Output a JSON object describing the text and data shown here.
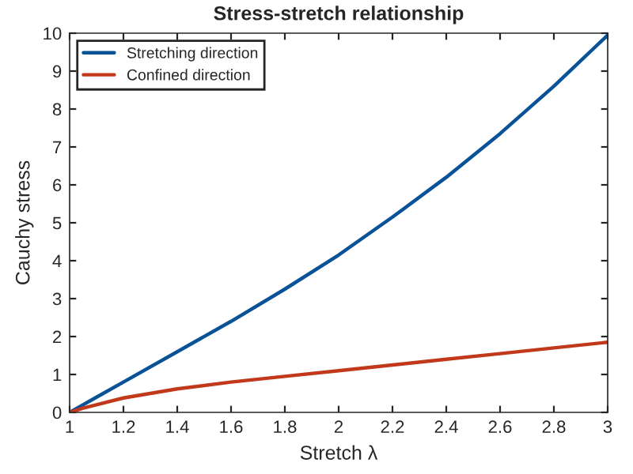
{
  "chart_data": {
    "type": "line",
    "title": "Stress-stretch relationship",
    "xlabel": "Stretch λ",
    "ylabel": "Cauchy stress",
    "xlim": [
      1,
      3
    ],
    "ylim": [
      0,
      10
    ],
    "xticks": [
      1,
      1.2,
      1.4,
      1.6,
      1.8,
      2,
      2.2,
      2.4,
      2.6,
      2.8,
      3
    ],
    "yticks": [
      0,
      1,
      2,
      3,
      4,
      5,
      6,
      7,
      8,
      9,
      10
    ],
    "grid": false,
    "legend": "top left",
    "marker": "none",
    "line_style": "solid",
    "series": [
      {
        "name": "Stretching direction",
        "color": "#0a5298",
        "x": [
          1,
          1.1,
          1.2,
          1.4,
          1.6,
          1.8,
          2.0,
          2.2,
          2.4,
          2.6,
          2.8,
          3.0
        ],
        "values": [
          0,
          0.4,
          0.8,
          1.6,
          2.4,
          3.25,
          4.15,
          5.15,
          6.2,
          7.35,
          8.6,
          9.95
        ]
      },
      {
        "name": "Confined direction",
        "color": "#c1391a",
        "x": [
          1,
          1.05,
          1.1,
          1.2,
          1.4,
          1.6,
          1.8,
          2.0,
          2.2,
          2.4,
          2.6,
          2.8,
          3.0
        ],
        "values": [
          0,
          0.11,
          0.2,
          0.38,
          0.62,
          0.8,
          0.95,
          1.1,
          1.25,
          1.4,
          1.55,
          1.7,
          1.85
        ]
      }
    ]
  }
}
